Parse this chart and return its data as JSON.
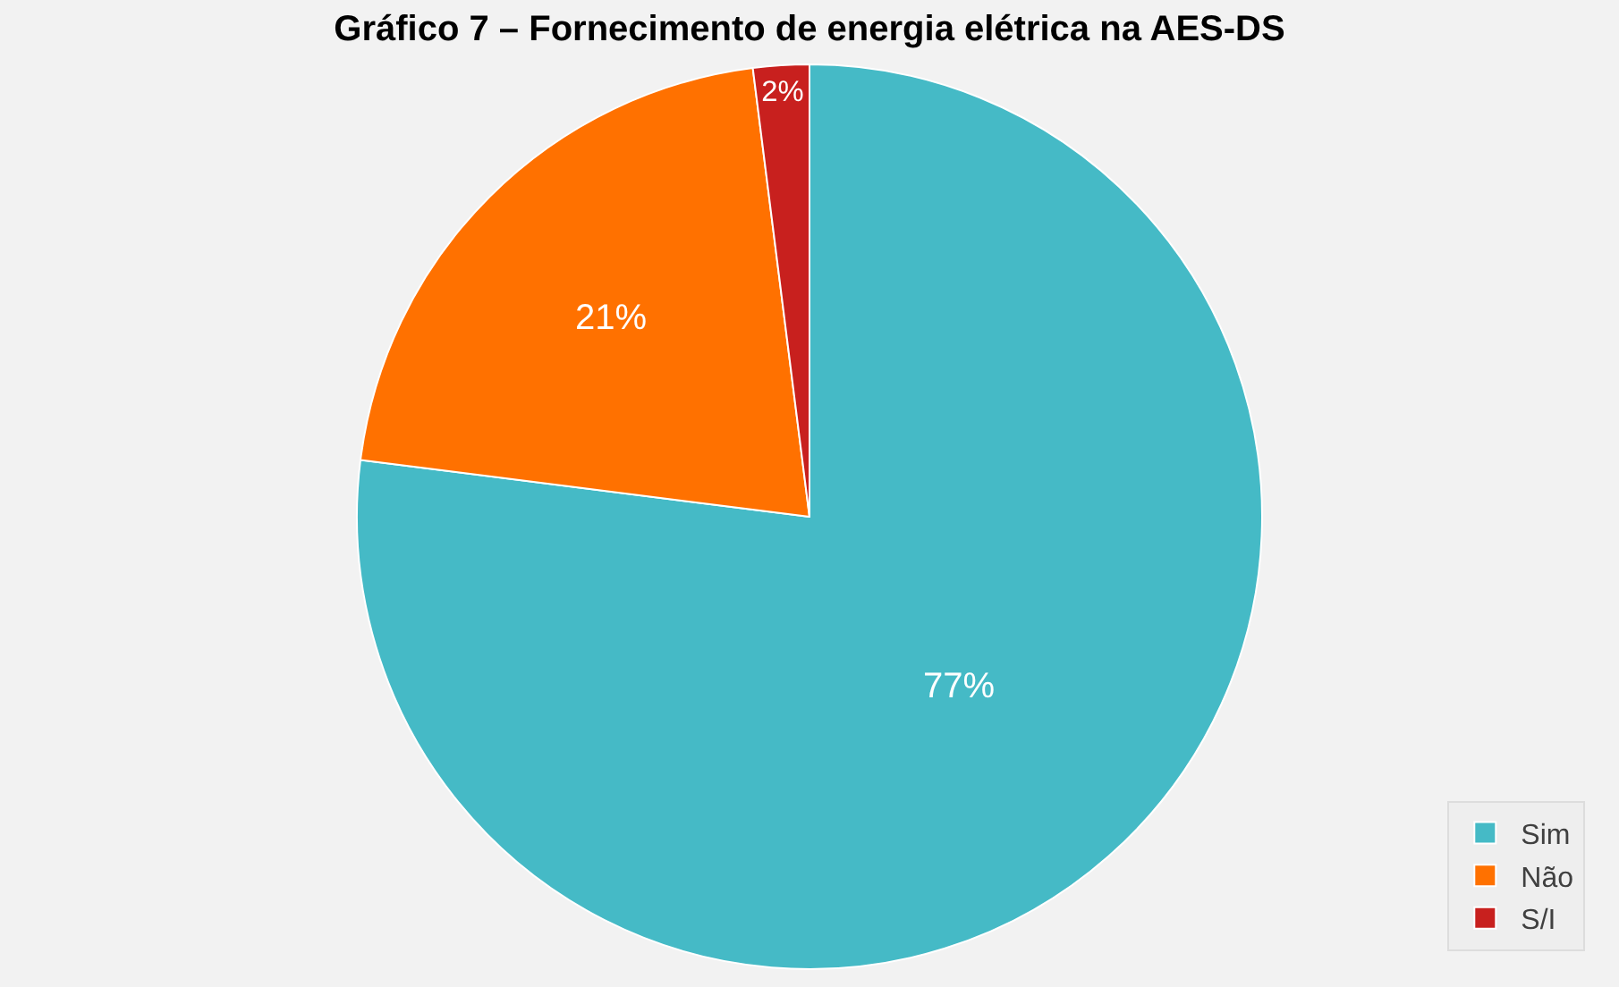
{
  "chart_data": {
    "type": "pie",
    "title": "Gráfico 7 – Fornecimento de energia elétrica na AES-DS",
    "categories": [
      "Sim",
      "Não",
      "S/I"
    ],
    "values": [
      77,
      21,
      2
    ],
    "colors": [
      "#45bac6",
      "#ff7100",
      "#c8201e"
    ],
    "value_labels": [
      "77%",
      "21%",
      "2%"
    ],
    "legend": "bottom right"
  }
}
